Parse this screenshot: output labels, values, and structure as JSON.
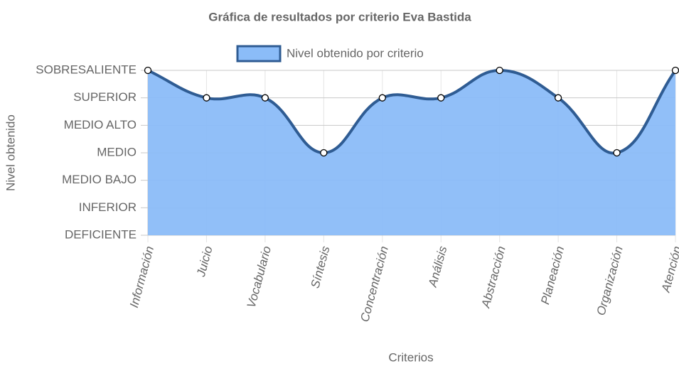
{
  "chart_data": {
    "type": "line",
    "title": "Gráfica de resultados por criterio Eva Bastida",
    "x_label": "Criterios",
    "y_label": "Nivel obtenido",
    "categories": [
      "Información",
      "Juicio",
      "Vocabulario",
      "Síntesis",
      "Concentración",
      "Análisis",
      "Abstracción",
      "Planeación",
      "Organización",
      "Atención"
    ],
    "series": [
      {
        "name": "Nivel obtenido por criterio",
        "color": "#2f5c93",
        "fill_color": "#8bbcf8",
        "values": [
          6,
          5,
          5,
          3,
          5,
          5,
          6,
          5,
          3,
          6
        ]
      }
    ],
    "ylim": [
      0,
      6
    ],
    "yticks": [
      {
        "value": 0,
        "label": "DEFICIENTE"
      },
      {
        "value": 1,
        "label": "INFERIOR"
      },
      {
        "value": 2,
        "label": "MEDIO BAJO"
      },
      {
        "value": 3,
        "label": "MEDIO"
      },
      {
        "value": 4,
        "label": "MEDIO ALTO"
      },
      {
        "value": 5,
        "label": "SUPERIOR"
      },
      {
        "value": 6,
        "label": "SOBRESALIENTE"
      }
    ],
    "grid": true,
    "legend": "top"
  }
}
